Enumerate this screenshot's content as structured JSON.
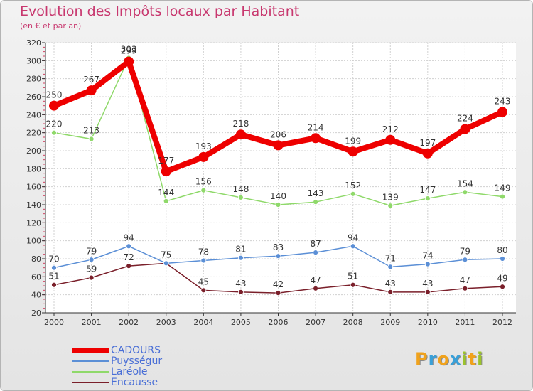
{
  "chart_data": {
    "type": "line",
    "title": "Evolution des Impôts locaux par Habitant",
    "subtitle": "(en € et par an)",
    "xlabel": "",
    "ylabel": "",
    "ylim": [
      20,
      320
    ],
    "yticks": [
      "20",
      "40",
      "60",
      "80",
      "100",
      "120",
      "140",
      "160",
      "180",
      "200",
      "220",
      "240",
      "260",
      "280",
      "300",
      "320"
    ],
    "categories": [
      "2000",
      "2001",
      "2002",
      "2003",
      "2004",
      "2005",
      "2006",
      "2007",
      "2008",
      "2009",
      "2010",
      "2011",
      "2012"
    ],
    "series": [
      {
        "name": "Encausse",
        "color": "#7a1f2a",
        "values": [
          51,
          59,
          72,
          75,
          45,
          43,
          42,
          47,
          51,
          43,
          43,
          47,
          49
        ]
      },
      {
        "name": "Puysségur",
        "color": "#5b8fd6",
        "values": [
          70,
          79,
          94,
          75,
          78,
          81,
          83,
          87,
          94,
          71,
          74,
          79,
          80
        ]
      },
      {
        "name": "Laréole",
        "color": "#8fd96a",
        "values": [
          220,
          213,
          303,
          144,
          156,
          148,
          140,
          143,
          152,
          139,
          147,
          154,
          149
        ]
      },
      {
        "name": "CADOURS",
        "color": "#ee0000",
        "values": [
          250,
          267,
          299,
          177,
          193,
          218,
          206,
          214,
          199,
          212,
          197,
          224,
          243
        ]
      }
    ],
    "legend_position": "bottom-left"
  },
  "legend": {
    "items": [
      {
        "name": "CADOURS",
        "color": "#ee0000",
        "thickness": 8
      },
      {
        "name": "Puysségur",
        "color": "#5b8fd6",
        "thickness": 2
      },
      {
        "name": "Laréole",
        "color": "#8fd96a",
        "thickness": 2
      },
      {
        "name": "Encausse",
        "color": "#7a1f2a",
        "thickness": 2
      }
    ]
  },
  "logo": {
    "letters": [
      {
        "char": "P",
        "color": "#f0a21c"
      },
      {
        "char": "r",
        "color": "#3aa0d8"
      },
      {
        "char": "o",
        "color": "#f0a21c"
      },
      {
        "char": "x",
        "color": "#3aa0d8"
      },
      {
        "char": "i",
        "color": "#9cc42a"
      },
      {
        "char": "t",
        "color": "#f0a21c"
      },
      {
        "char": "i",
        "color": "#9cc42a"
      }
    ]
  }
}
